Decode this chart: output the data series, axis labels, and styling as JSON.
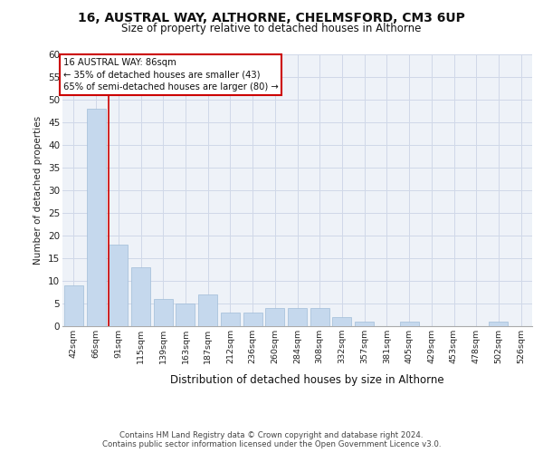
{
  "title_line1": "16, AUSTRAL WAY, ALTHORNE, CHELMSFORD, CM3 6UP",
  "title_line2": "Size of property relative to detached houses in Althorne",
  "xlabel": "Distribution of detached houses by size in Althorne",
  "ylabel": "Number of detached properties",
  "categories": [
    "42sqm",
    "66sqm",
    "91sqm",
    "115sqm",
    "139sqm",
    "163sqm",
    "187sqm",
    "212sqm",
    "236sqm",
    "260sqm",
    "284sqm",
    "308sqm",
    "332sqm",
    "357sqm",
    "381sqm",
    "405sqm",
    "429sqm",
    "453sqm",
    "478sqm",
    "502sqm",
    "526sqm"
  ],
  "values": [
    9,
    48,
    18,
    13,
    6,
    5,
    7,
    3,
    3,
    4,
    4,
    4,
    2,
    1,
    0,
    1,
    0,
    0,
    0,
    1,
    0
  ],
  "bar_color": "#c5d8ed",
  "bar_edge_color": "#a0bcd8",
  "grid_color": "#d0d8e8",
  "background_color": "#eef2f8",
  "red_line_index": 2,
  "annotation_text": "16 AUSTRAL WAY: 86sqm\n← 35% of detached houses are smaller (43)\n65% of semi-detached houses are larger (80) →",
  "annotation_box_color": "#ffffff",
  "annotation_border_color": "#cc0000",
  "vline_color": "#cc0000",
  "footer_line1": "Contains HM Land Registry data © Crown copyright and database right 2024.",
  "footer_line2": "Contains public sector information licensed under the Open Government Licence v3.0.",
  "ylim": [
    0,
    60
  ],
  "yticks": [
    0,
    5,
    10,
    15,
    20,
    25,
    30,
    35,
    40,
    45,
    50,
    55,
    60
  ],
  "fig_width": 6.0,
  "fig_height": 5.0,
  "dpi": 100
}
